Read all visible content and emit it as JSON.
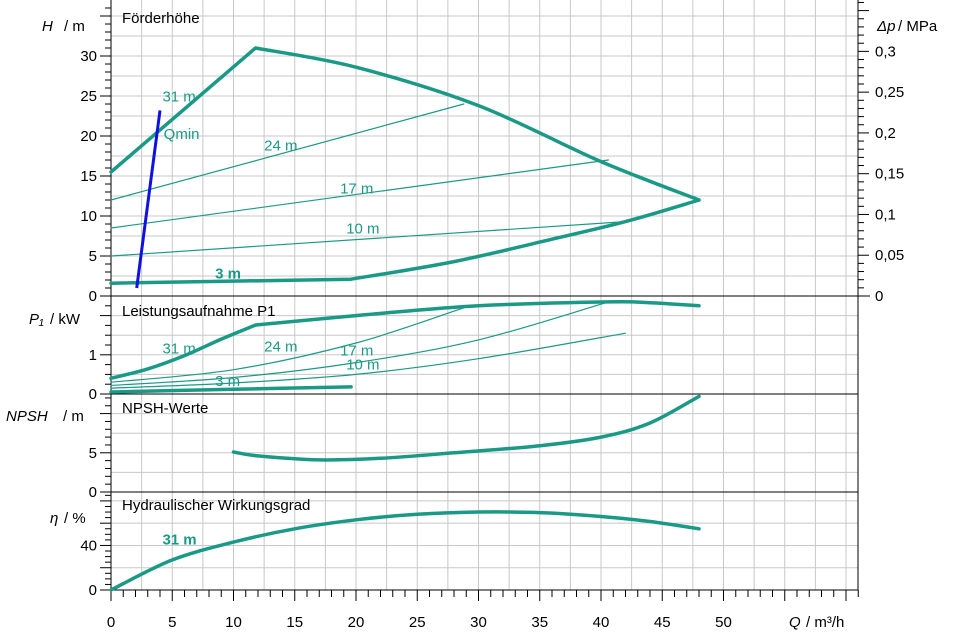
{
  "colors": {
    "curve": "#1a9a86",
    "qmin": "#1010e0",
    "grid": "#c8c8c8",
    "axis": "#000000"
  },
  "chart_data": [
    {
      "type": "line",
      "title": "Förderhöhe",
      "ylabel_sym": "H",
      "ylabel_unit": "/ m",
      "y2label_sym": "Δp",
      "y2label_unit": "/ MPa",
      "xlim": [
        0,
        61
      ],
      "ylim": [
        0,
        37
      ],
      "y2lim": [
        0,
        0.363
      ],
      "yticks": [
        0,
        5,
        10,
        15,
        20,
        25,
        30
      ],
      "y2ticks": [
        "0",
        "0,05",
        "0,1",
        "0,15",
        "0,2",
        "0,25",
        "0,3"
      ],
      "series": [
        {
          "name": "31 m",
          "width": 3.5,
          "x": [
            0,
            11.8,
            20,
            30,
            40,
            48
          ],
          "y": [
            15.5,
            31,
            28.6,
            23.8,
            16.8,
            12
          ]
        },
        {
          "name": "",
          "width": 3.5,
          "x": [
            0,
            19.6,
            28,
            36,
            42,
            48
          ],
          "y": [
            1.6,
            2.1,
            4.3,
            7.1,
            9.3,
            12
          ]
        },
        {
          "name": "24 m",
          "width": 1.2,
          "x": [
            0,
            28.8
          ],
          "y": [
            12,
            24
          ]
        },
        {
          "name": "17 m",
          "width": 1.2,
          "x": [
            0,
            40.6
          ],
          "y": [
            8.5,
            17
          ]
        },
        {
          "name": "10 m",
          "width": 1.2,
          "x": [
            0,
            42
          ],
          "y": [
            5,
            9.3
          ]
        },
        {
          "name": "3 m",
          "width": 1.2,
          "x": [
            0,
            19.6
          ],
          "y": [
            1.6,
            2.1
          ]
        }
      ],
      "qmin": {
        "label": "Qmin",
        "x": [
          2.1,
          4.0
        ],
        "y": [
          1.0,
          23.2
        ]
      },
      "annotations": [
        {
          "text": "31 m",
          "x": 4.2,
          "y": 24.3,
          "bold": false
        },
        {
          "text": "Qmin",
          "x": 4.3,
          "y": 19.6,
          "bold": false
        },
        {
          "text": "24 m",
          "x": 12.5,
          "y": 18.2,
          "bold": false
        },
        {
          "text": "17 m",
          "x": 18.7,
          "y": 12.8,
          "bold": false
        },
        {
          "text": "10 m",
          "x": 19.2,
          "y": 7.8,
          "bold": false
        },
        {
          "text": "3 m",
          "x": 8.5,
          "y": 2.2,
          "bold": true
        }
      ]
    },
    {
      "type": "line",
      "title": "Leistungsaufnahme P1",
      "ylabel_sym": "P₁",
      "ylabel_unit": "/ kW",
      "xlim": [
        0,
        61
      ],
      "ylim": [
        0,
        2.5
      ],
      "yticks": [
        0,
        1
      ],
      "series": [
        {
          "name": "31 m",
          "width": 3.5,
          "x": [
            0,
            3,
            6,
            9,
            11.8,
            20,
            30,
            40.6,
            44,
            48
          ],
          "y": [
            0.4,
            0.64,
            0.98,
            1.4,
            1.76,
            2.0,
            2.25,
            2.35,
            2.33,
            2.25
          ]
        },
        {
          "name": "24 m",
          "width": 1.2,
          "x": [
            0,
            10,
            20,
            28.8
          ],
          "y": [
            0.3,
            0.62,
            1.3,
            2.2
          ]
        },
        {
          "name": "17 m",
          "width": 1.2,
          "x": [
            0,
            10,
            20,
            30,
            40.6
          ],
          "y": [
            0.22,
            0.42,
            0.8,
            1.38,
            2.35
          ]
        },
        {
          "name": "10 m",
          "width": 1.2,
          "x": [
            0,
            10,
            20,
            30,
            42
          ],
          "y": [
            0.15,
            0.28,
            0.5,
            0.9,
            1.55
          ]
        },
        {
          "name": "3 m",
          "width": 3.5,
          "x": [
            0,
            10,
            19.6
          ],
          "y": [
            0.05,
            0.12,
            0.18
          ]
        }
      ],
      "annotations": [
        {
          "text": "31 m",
          "x": 4.2,
          "y": 1.03,
          "bold": false
        },
        {
          "text": "24 m",
          "x": 12.5,
          "y": 1.08,
          "bold": false
        },
        {
          "text": "17 m",
          "x": 18.7,
          "y": 0.98,
          "bold": false
        },
        {
          "text": "10 m",
          "x": 19.2,
          "y": 0.63,
          "bold": false
        },
        {
          "text": "3 m",
          "x": 8.5,
          "y": 0.2,
          "bold": false
        }
      ]
    },
    {
      "type": "line",
      "title": "NPSH-Werte",
      "ylabel_sym": "NPSH",
      "ylabel_unit": "/ m",
      "xlim": [
        0,
        61
      ],
      "ylim": [
        0,
        12.5
      ],
      "yticks": [
        0,
        5
      ],
      "series": [
        {
          "name": "",
          "width": 3.5,
          "x": [
            10,
            12,
            17,
            22,
            28,
            35,
            40,
            44,
            48
          ],
          "y": [
            5.1,
            4.6,
            4.1,
            4.3,
            5.0,
            5.9,
            7.0,
            8.8,
            12.2
          ]
        }
      ],
      "annotations": []
    },
    {
      "type": "line",
      "title": "Hydraulischer Wirkungsgrad",
      "ylabel_sym": "η",
      "ylabel_unit": "/ %",
      "xlabel_sym": "Q",
      "xlabel_unit": "/ m³/h",
      "xlim": [
        0,
        61
      ],
      "ylim": [
        0,
        88
      ],
      "yticks": [
        0,
        40
      ],
      "xticks": [
        0,
        5,
        10,
        15,
        20,
        25,
        30,
        35,
        40,
        45,
        50
      ],
      "series": [
        {
          "name": "31 m",
          "width": 3.5,
          "x": [
            0,
            5,
            10,
            15,
            20,
            25,
            30,
            35,
            40,
            44,
            48
          ],
          "y": [
            0,
            27,
            43,
            55,
            63,
            68,
            70,
            69.5,
            66,
            61.5,
            55
          ]
        }
      ],
      "annotations": [
        {
          "text": "31 m",
          "x": 4.2,
          "y": 41,
          "bold": true
        }
      ]
    }
  ]
}
